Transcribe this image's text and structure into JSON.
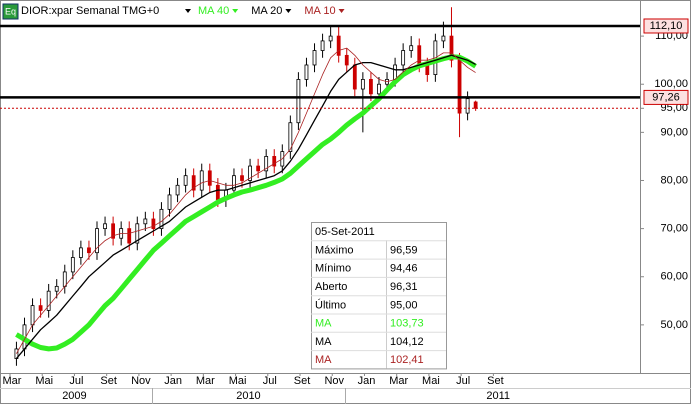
{
  "chart_data": {
    "type": "candlestick",
    "title": "DIOR:xpar Semanal TMG+0",
    "icon": "Eq",
    "x": [
      0.4,
      0.9,
      1.4,
      1.9,
      2.4,
      2.9,
      3.4,
      3.9,
      4.4,
      4.9,
      5.4,
      5.9,
      6.4,
      6.9,
      7.4,
      7.9,
      8.4,
      8.9,
      9.4,
      9.9,
      10.4,
      10.9,
      11.4,
      11.9,
      12.4,
      12.9,
      13.4,
      13.9,
      14.4,
      14.9,
      15.4,
      15.9,
      16.4,
      16.9,
      17.4,
      17.9,
      18.4,
      18.9,
      19.4,
      19.9,
      20.4,
      20.9,
      21.4,
      21.9,
      22.4,
      22.9,
      23.4,
      23.9,
      24.4,
      24.9,
      25.4,
      25.9,
      26.4,
      26.9,
      27.4,
      27.9,
      28.4,
      28.9
    ],
    "open": [
      43,
      45,
      50,
      54,
      53,
      57,
      58,
      61,
      64,
      66,
      65,
      70,
      71,
      68,
      70,
      67,
      71,
      72,
      70,
      74,
      77,
      79,
      81,
      78,
      82,
      79,
      76,
      78,
      81,
      80,
      83,
      82,
      85,
      83,
      86,
      92,
      101,
      104,
      107,
      109,
      110,
      106,
      104,
      99,
      101,
      98,
      100,
      101,
      104,
      107,
      108,
      104,
      102,
      109,
      110,
      105,
      94,
      96.31
    ],
    "high": [
      46.5,
      51.5,
      55.5,
      55.5,
      58.5,
      59.5,
      62.5,
      65.5,
      67.5,
      67.5,
      71.5,
      72.5,
      72.5,
      71.5,
      71.5,
      72.5,
      73.5,
      73.5,
      75.5,
      78.5,
      80.5,
      82.5,
      82.5,
      83.5,
      83.5,
      80.5,
      79.5,
      82.5,
      82.5,
      84.5,
      84.5,
      86.5,
      86.5,
      87.5,
      93.5,
      102.5,
      105.5,
      108.5,
      110.5,
      112,
      112,
      107.5,
      105.5,
      102.5,
      102.5,
      101.5,
      102.5,
      105.5,
      108.5,
      110,
      109.5,
      105.5,
      110.5,
      113,
      116,
      106.5,
      98.5,
      96.59
    ],
    "low": [
      41.5,
      43.5,
      48.5,
      51.5,
      51.5,
      55.5,
      56.5,
      59.5,
      62.5,
      63.5,
      63.5,
      68.5,
      66.5,
      66.5,
      65.5,
      65.5,
      69.5,
      68.5,
      68.5,
      72.5,
      75.5,
      77.5,
      76.5,
      76.5,
      77.5,
      74.5,
      74.5,
      76.5,
      78.5,
      78.5,
      80.5,
      80.5,
      81.5,
      81.5,
      84.5,
      90.5,
      99.5,
      102.5,
      105.5,
      107.5,
      104.5,
      102.5,
      97.5,
      90,
      96.5,
      96.5,
      98.5,
      99.5,
      102.5,
      105.5,
      102.5,
      100.5,
      100.5,
      107.5,
      103.5,
      89,
      92.5,
      94.46
    ],
    "close": [
      45,
      50,
      54,
      53,
      57,
      58,
      61,
      64,
      66,
      65,
      70,
      71,
      68,
      70,
      67,
      71,
      72,
      70,
      74,
      77,
      79,
      81,
      78,
      82,
      79,
      76,
      78,
      81,
      80,
      83,
      82,
      85,
      83,
      86,
      92,
      101,
      104,
      107,
      109,
      110,
      106,
      104,
      99,
      101,
      98,
      100,
      101,
      104,
      107,
      108,
      104,
      102,
      109,
      110,
      105,
      94,
      97,
      95
    ],
    "up_color": "#000000",
    "down_color": "#cc0000",
    "series": [
      {
        "name": "MA 40",
        "color": "#33ee22",
        "width": 5,
        "values": [
          48,
          47,
          46,
          45.3,
          45,
          45.2,
          46,
          47,
          48.5,
          50,
          52,
          54,
          55.5,
          57.5,
          59.5,
          61.5,
          63.5,
          65.5,
          67,
          68.5,
          70,
          71.5,
          72.5,
          73.5,
          74.5,
          75.5,
          76.3,
          77,
          77.6,
          78,
          78.5,
          79,
          79.6,
          80.3,
          81.5,
          83,
          84.5,
          86,
          87.5,
          88.6,
          90,
          91.5,
          92.8,
          94,
          95.5,
          97,
          98.8,
          100.5,
          102,
          103,
          103.8,
          104.3,
          104.8,
          105.3,
          105.7,
          105.6,
          104.8,
          103.73
        ]
      },
      {
        "name": "MA 20",
        "color": "#000000",
        "width": 1.3,
        "values": [
          43,
          45,
          47,
          49,
          50.5,
          52,
          54,
          56,
          58,
          60,
          61.5,
          63,
          64.5,
          65.5,
          66.5,
          67.5,
          68.5,
          69.5,
          70.5,
          71.5,
          73,
          74.5,
          75.5,
          76.5,
          77.5,
          78,
          78,
          78.5,
          79,
          79.5,
          80,
          80.5,
          81,
          82,
          84,
          86.5,
          89.5,
          92.5,
          95.5,
          98.5,
          101,
          102.5,
          104,
          104.5,
          104.5,
          104,
          103.5,
          103,
          103,
          103.5,
          104,
          104.5,
          105,
          105.5,
          106,
          105.5,
          105,
          104.12
        ]
      },
      {
        "name": "MA 10",
        "color": "#aa2222",
        "width": 0.8,
        "values": [
          44,
          47,
          50,
          52,
          54,
          56,
          58,
          60,
          62,
          64,
          66,
          67.5,
          68.5,
          69,
          69,
          69.5,
          70,
          70.5,
          71.5,
          73,
          75,
          77,
          78.5,
          79.5,
          80,
          79.5,
          79,
          79,
          79.5,
          80.5,
          81.5,
          82.5,
          83.5,
          84.5,
          86.5,
          90,
          94,
          98,
          102,
          105.5,
          107,
          107.5,
          106,
          104,
          102.5,
          101,
          100.5,
          101,
          102.5,
          104,
          105,
          105,
          105.5,
          106.5,
          106.5,
          105,
          103.5,
          102.41
        ]
      }
    ],
    "xlim": [
      -0.62,
      39.1
    ],
    "xticks": [
      {
        "value": 0,
        "label": "Mar"
      },
      {
        "value": 2,
        "label": "Mai"
      },
      {
        "value": 4,
        "label": "Jul"
      },
      {
        "value": 6,
        "label": "Set"
      },
      {
        "value": 8,
        "label": "Nov"
      },
      {
        "value": 10,
        "label": "Jan"
      },
      {
        "value": 12,
        "label": "Mar"
      },
      {
        "value": 14,
        "label": "Mai"
      },
      {
        "value": 16,
        "label": "Jul"
      },
      {
        "value": 18,
        "label": "Set"
      },
      {
        "value": 20,
        "label": "Nov"
      },
      {
        "value": 22,
        "label": "Jan"
      },
      {
        "value": 24,
        "label": "Mar"
      },
      {
        "value": 26,
        "label": "Mai"
      },
      {
        "value": 28,
        "label": "Jul"
      },
      {
        "value": 30,
        "label": "Set"
      }
    ],
    "year_ticks": [
      {
        "value": 4,
        "label": "2009"
      },
      {
        "value": 14.8,
        "label": "2010"
      },
      {
        "value": 30.3,
        "label": "2011"
      }
    ],
    "ylim": [
      40,
      117.5
    ],
    "yticks": [
      {
        "value": 50,
        "label": "50,00"
      },
      {
        "value": 60,
        "label": "60,00"
      },
      {
        "value": 70,
        "label": "70,00"
      },
      {
        "value": 80,
        "label": "80,00"
      },
      {
        "value": 90,
        "label": "90,00"
      },
      {
        "value": 95,
        "label": "95,00"
      },
      {
        "value": 100,
        "label": "100,00"
      },
      {
        "value": 110,
        "label": "110,00"
      }
    ],
    "hlines": [
      {
        "value": 112.1,
        "label": "112,10"
      },
      {
        "value": 97.26,
        "label": "97,26"
      }
    ],
    "grid": false,
    "info_box": {
      "date": "05-Set-2011",
      "rows": [
        {
          "label": "Máximo",
          "value": "96,59"
        },
        {
          "label": "Mínimo",
          "value": "94,46"
        },
        {
          "label": "Aberto",
          "value": "96,31"
        },
        {
          "label": "Último",
          "value": "95,00"
        },
        {
          "label": "MA",
          "value": "103,73"
        },
        {
          "label": "MA",
          "value": "104,12"
        },
        {
          "label": "MA",
          "value": "102,41"
        }
      ]
    }
  }
}
